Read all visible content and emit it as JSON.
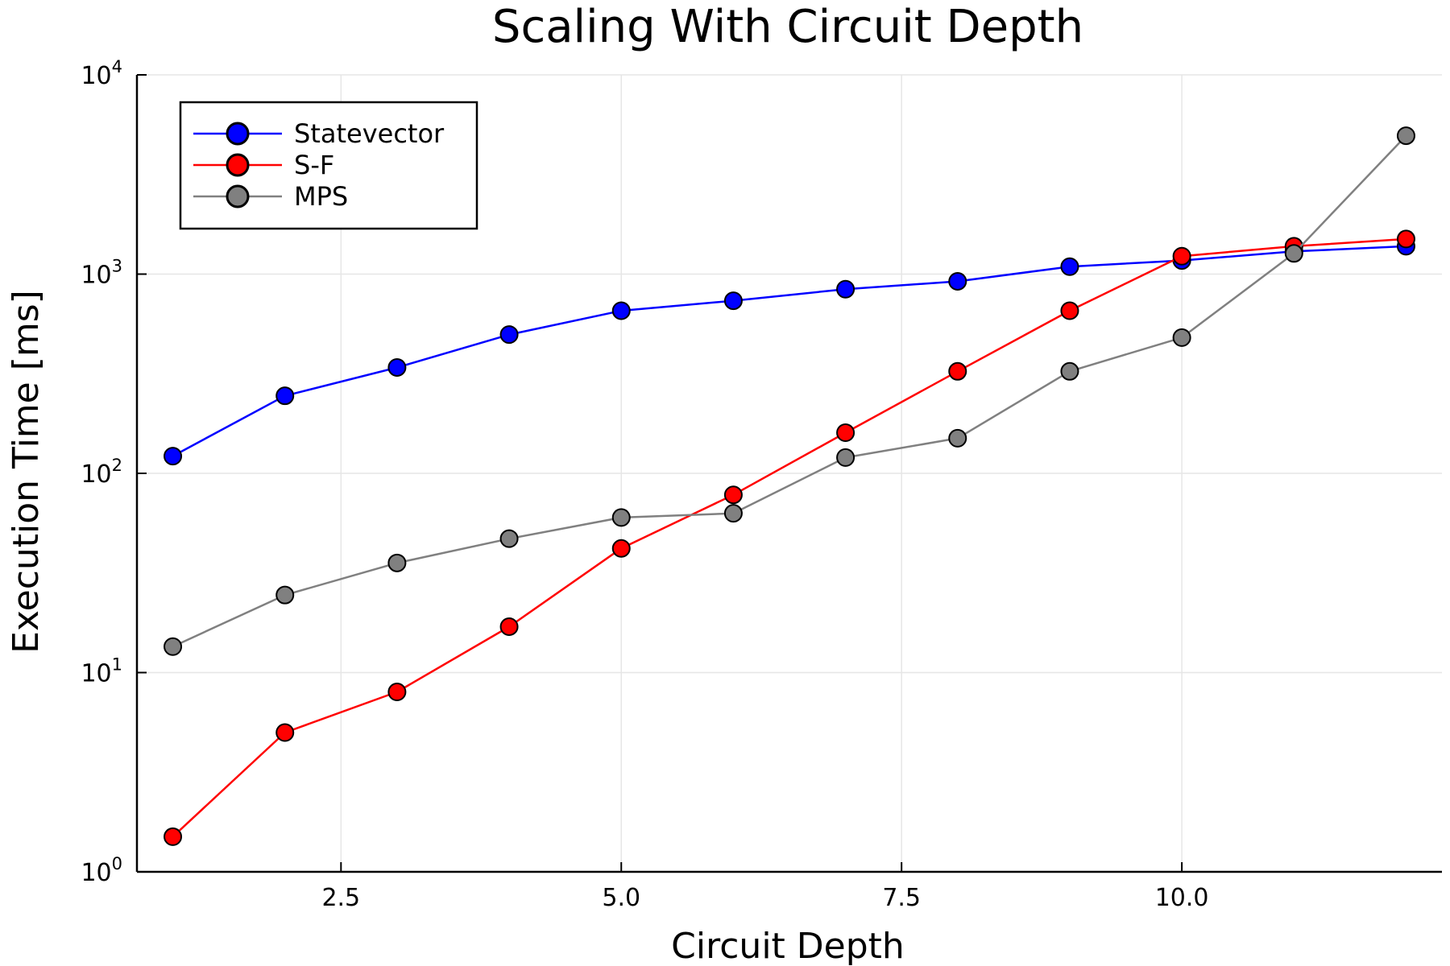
{
  "chart_data": {
    "type": "line",
    "title": "Scaling With Circuit Depth",
    "xlabel": "Circuit Depth",
    "ylabel": "Execution Time [ms]",
    "x_scale": "linear",
    "y_scale": "log",
    "xlim": [
      0.68,
      12.32
    ],
    "ylim": [
      1,
      10000
    ],
    "x_ticks": [
      2.5,
      5.0,
      7.5,
      10.0
    ],
    "x_tick_labels": [
      "2.5",
      "5.0",
      "7.5",
      "10.0"
    ],
    "y_ticks": [
      1,
      10,
      100,
      1000,
      10000
    ],
    "y_tick_labels": [
      {
        "base": "10",
        "exp": "0"
      },
      {
        "base": "10",
        "exp": "1"
      },
      {
        "base": "10",
        "exp": "2"
      },
      {
        "base": "10",
        "exp": "3"
      },
      {
        "base": "10",
        "exp": "4"
      }
    ],
    "grid": true,
    "legend_position": "top-left",
    "x": [
      1,
      2,
      3,
      4,
      5,
      6,
      7,
      8,
      9,
      10,
      11,
      12
    ],
    "series": [
      {
        "name": "Statevector",
        "color": "#0000ff",
        "values": [
          122,
          245,
          340,
          497,
          655,
          735,
          840,
          920,
          1090,
          1170,
          1300,
          1380
        ]
      },
      {
        "name": "S-F",
        "color": "#ff0000",
        "values": [
          1.5,
          5.0,
          8.0,
          17,
          42,
          78,
          160,
          325,
          655,
          1230,
          1380,
          1500
        ]
      },
      {
        "name": "MPS",
        "color": "#808080",
        "values": [
          13.5,
          24.5,
          35.5,
          47,
          60,
          63,
          120,
          150,
          325,
          480,
          1270,
          4950
        ]
      }
    ]
  }
}
